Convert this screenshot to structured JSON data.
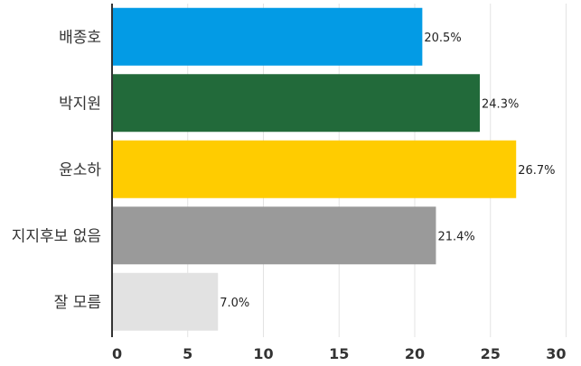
{
  "chart_data": {
    "type": "bar",
    "orientation": "horizontal",
    "categories": [
      "배종호",
      "박지원",
      "윤소하",
      "지지후보 없음",
      "잘 모름"
    ],
    "values": [
      20.5,
      24.3,
      26.7,
      21.4,
      7.0
    ],
    "value_labels": [
      "20.5%",
      "24.3%",
      "26.7%",
      "21.4%",
      "7.0%"
    ],
    "colors": [
      "#039BE5",
      "#226A3A",
      "#FFCC00",
      "#9A9A9A",
      "#E2E2E2"
    ],
    "xlim": [
      0,
      30
    ],
    "xticks": [
      0,
      5,
      10,
      15,
      20,
      25,
      30
    ],
    "grid": true,
    "legend": "none"
  }
}
